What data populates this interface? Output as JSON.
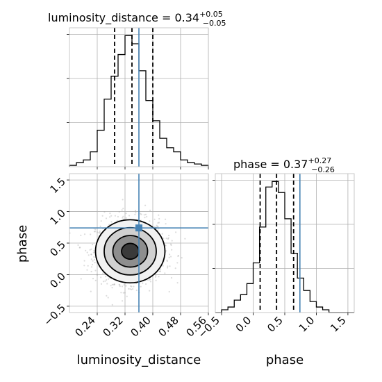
{
  "chart_data": {
    "type": "corner",
    "parameters": [
      "luminosity_distance",
      "phase"
    ],
    "truth": {
      "luminosity_distance": 0.36,
      "phase": 0.74
    },
    "panels": [
      {
        "id": "luminosity_distance_marginal",
        "type": "histogram",
        "title": {
          "main": "luminosity_distance = 0.34",
          "sup": "+0.05",
          "sub": "−0.05"
        },
        "xlim": [
          0.16,
          0.56
        ],
        "bin_edges": [
          0.16,
          0.18,
          0.2,
          0.22,
          0.24,
          0.26,
          0.28,
          0.3,
          0.32,
          0.34,
          0.36,
          0.38,
          0.4,
          0.42,
          0.44,
          0.46,
          0.48,
          0.5,
          0.52,
          0.54,
          0.56
        ],
        "counts": [
          1,
          3,
          5,
          11,
          27,
          50,
          67,
          83,
          97,
          91,
          71,
          49,
          34,
          21,
          14,
          11,
          5,
          3,
          2,
          1
        ],
        "quantiles": [
          0.29,
          0.34,
          0.4
        ],
        "yticks_shown_without_labels": true
      },
      {
        "id": "luminosity_distance_vs_phase",
        "type": "2d-density",
        "xlim": [
          0.16,
          0.56
        ],
        "ylim": [
          -0.6,
          1.6
        ],
        "xticks": [
          0.24,
          0.32,
          0.4,
          0.48,
          0.56
        ],
        "xticklabels": [
          "0.24",
          "0.32",
          "0.40",
          "0.48",
          "0.56"
        ],
        "yticks": [
          -0.5,
          0.0,
          0.5,
          1.0,
          1.5
        ],
        "yticklabels": [
          "−0.5",
          "0.0",
          "0.5",
          "1.0",
          "1.5"
        ],
        "xlabel": "luminosity_distance",
        "ylabel": "phase",
        "center": [
          0.335,
          0.37
        ],
        "contour_levels_sigma": [
          0.5,
          1.0,
          1.5,
          2.0
        ],
        "std": [
          0.05,
          0.25
        ]
      },
      {
        "id": "phase_marginal",
        "type": "histogram",
        "title": {
          "main": "phase = 0.37",
          "sup": "+0.27",
          "sub": "−0.26"
        },
        "xlim": [
          -0.6,
          1.6
        ],
        "xticks": [
          -0.5,
          0.0,
          0.5,
          1.0,
          1.5
        ],
        "xticklabels": [
          "−0.5",
          "0.0",
          "0.5",
          "1.0",
          "1.5"
        ],
        "xlabel": "phase",
        "bin_edges": [
          -0.6,
          -0.5,
          -0.4,
          -0.3,
          -0.2,
          -0.1,
          0.0,
          0.1,
          0.2,
          0.3,
          0.4,
          0.5,
          0.6,
          0.7,
          0.8,
          0.9,
          1.0,
          1.1,
          1.2,
          1.3,
          1.4,
          1.5,
          1.6
        ],
        "counts": [
          0,
          2,
          4,
          9,
          13,
          21,
          36,
          62,
          91,
          95,
          87,
          68,
          43,
          25,
          16,
          8,
          4,
          2,
          0,
          0,
          0,
          0
        ],
        "quantiles": [
          0.11,
          0.37,
          0.64
        ]
      }
    ],
    "colors": {
      "truth": "#4682b4",
      "hist": "#000000",
      "contours": "#000000",
      "grid": "#b0b0b0"
    }
  }
}
